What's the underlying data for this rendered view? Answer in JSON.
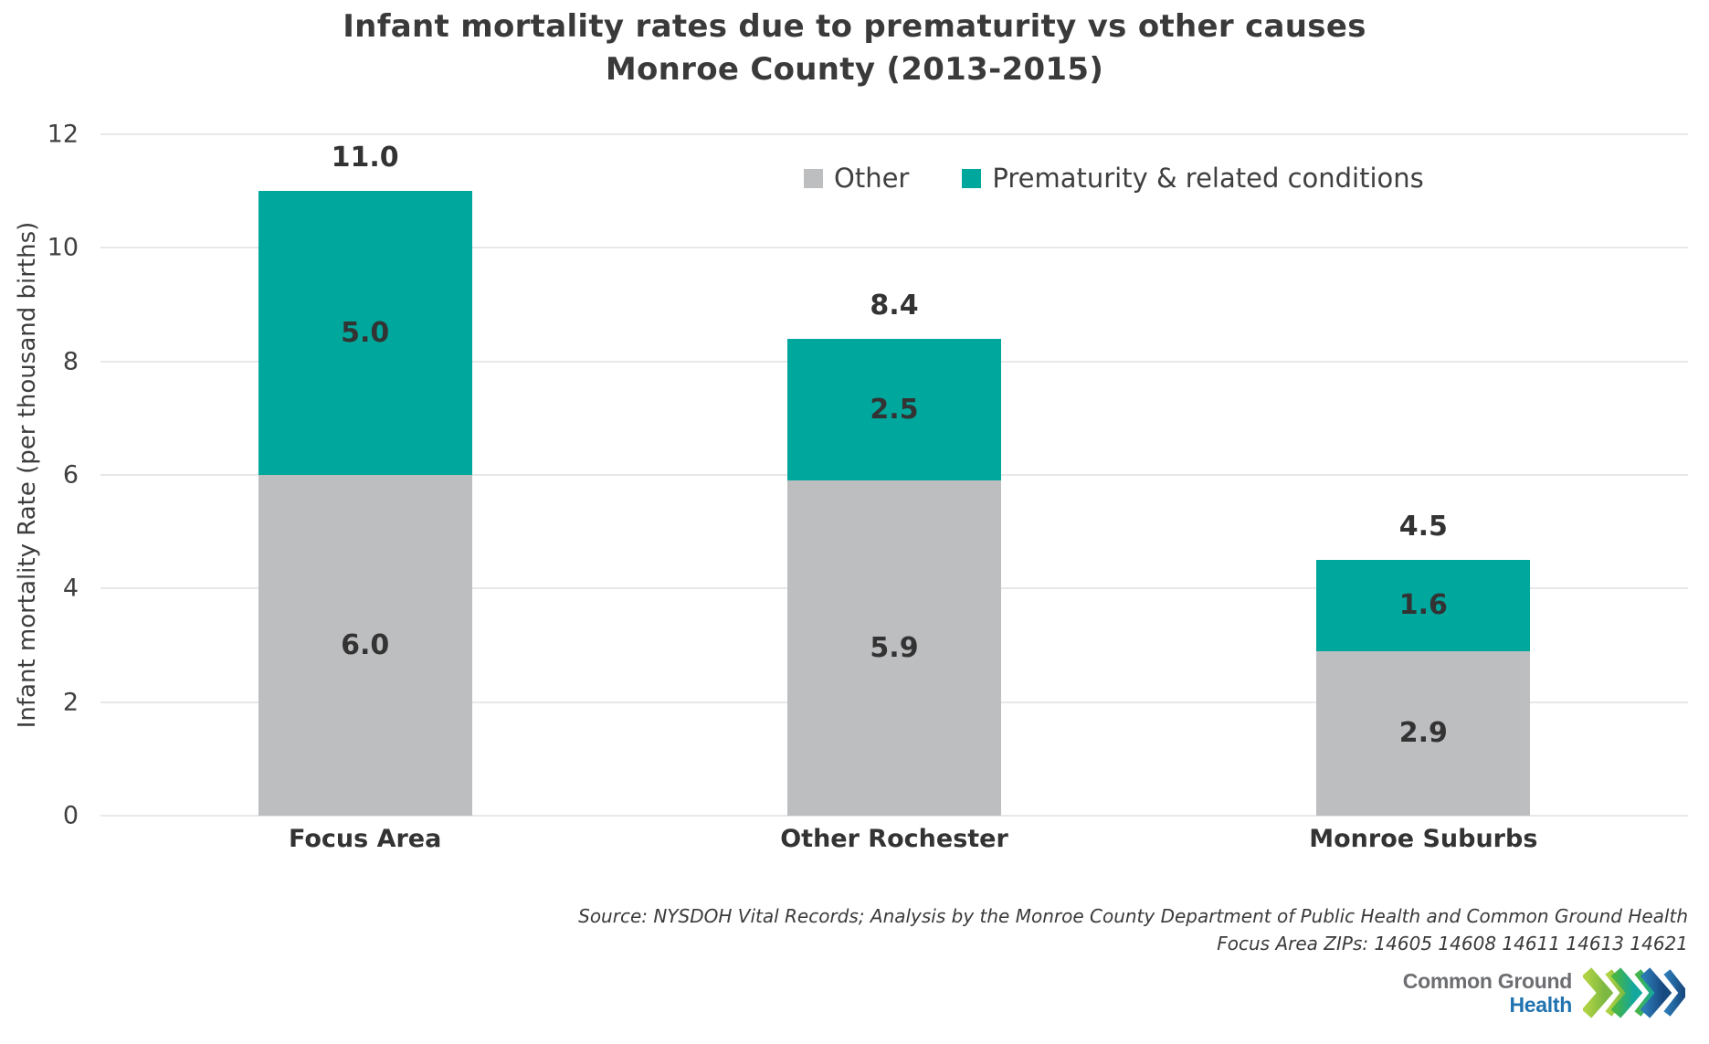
{
  "title": {
    "line1": "Infant mortality rates due to prematurity vs other causes",
    "line2": "Monroe County (2013-2015)"
  },
  "legend": {
    "items": [
      {
        "label": "Other",
        "color": "#bdbec0"
      },
      {
        "label": "Prematurity & related conditions",
        "color": "#00a79d"
      }
    ]
  },
  "chart_data": {
    "type": "bar",
    "stacked": true,
    "title": "Infant mortality rates due to prematurity vs other causes Monroe County (2013-2015)",
    "categories": [
      "Focus Area",
      "Other Rochester",
      "Monroe Suburbs"
    ],
    "series": [
      {
        "name": "Other",
        "color": "#bdbec0",
        "values": [
          6.0,
          5.9,
          2.9
        ]
      },
      {
        "name": "Prematurity & related conditions",
        "color": "#00a79d",
        "values": [
          5.0,
          2.5,
          1.6
        ]
      }
    ],
    "totals": [
      11.0,
      8.4,
      4.5
    ],
    "xlabel": "",
    "ylabel": "Infant mortality Rate (per thousand births)",
    "ylim": [
      0,
      12
    ],
    "yticks": [
      0,
      2,
      4,
      6,
      8,
      10,
      12
    ],
    "grid": true,
    "legend_position": "top-right",
    "value_labels": "inside-segments-and-total"
  },
  "source": {
    "line1": "Source: NYSDOH Vital Records; Analysis by the Monroe County Department of Public Health and Common Ground Health",
    "line2": "Focus Area ZIPs: 14605 14608 14611 14613 14621"
  },
  "logo": {
    "name_line1": "Common Ground",
    "name_line2": "Health",
    "chevrons_icon": "triple-chevron-right"
  },
  "colors": {
    "background": "#ffffff",
    "text_dark": "#3a3a3a",
    "tick_text": "#404040",
    "gridline": "#e8e8e8",
    "bar_other": "#bdbec0",
    "bar_prematurity": "#00a79d",
    "logo_gray": "#6d6e71",
    "logo_blue": "#2073b0",
    "chevron_lime": "#a6ce39",
    "chevron_teal": "#14a79e",
    "chevron_blue": "#1b4e8c"
  }
}
